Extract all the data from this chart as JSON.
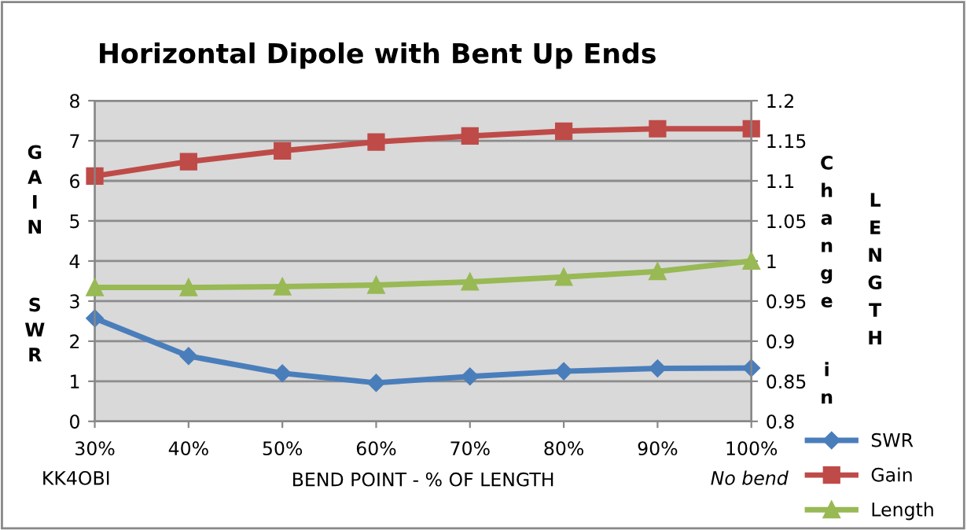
{
  "chart_data": {
    "type": "line",
    "title": "Horizontal Dipole with Bent Up Ends",
    "xlabel": "BEND POINT - % OF LENGTH",
    "ylabel": "GAIN\nSWR",
    "y2label": "Change\nin\nLENGTH",
    "categories": [
      "30%",
      "40%",
      "50%",
      "60%",
      "70%",
      "80%",
      "90%",
      "100%"
    ],
    "series": [
      {
        "name": "SWR",
        "color": "#4a7ebb",
        "marker": "diamond",
        "values": [
          2.57,
          1.63,
          1.2,
          0.96,
          1.12,
          1.25,
          1.32,
          1.33
        ]
      },
      {
        "name": "Gain",
        "color": "#be4b48",
        "marker": "square",
        "values": [
          6.12,
          6.48,
          6.75,
          6.97,
          7.12,
          7.24,
          7.3,
          7.3
        ]
      },
      {
        "name": "Length",
        "color": "#98b954",
        "marker": "triangle",
        "axis": "y2",
        "values": [
          0.967,
          0.967,
          0.968,
          0.97,
          0.974,
          0.98,
          0.987,
          1
        ]
      }
    ],
    "ylim": [
      0,
      8
    ],
    "yticks": [
      0,
      1,
      2,
      3,
      4,
      5,
      6,
      7,
      8
    ],
    "y2lim": [
      0.8,
      1.2
    ],
    "y2ticks": [
      0.8,
      0.85,
      0.9,
      0.95,
      1,
      1.05,
      1.1,
      1.15,
      1.2
    ],
    "grid": "y",
    "legend": "bottom right",
    "line_style": "solid",
    "annotations": [
      "KK4OBI",
      "No bend"
    ]
  }
}
